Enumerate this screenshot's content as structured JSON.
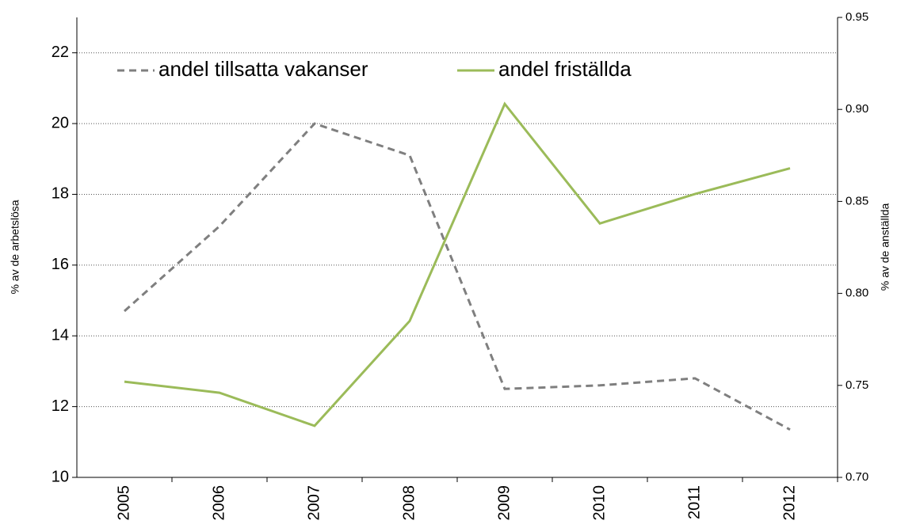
{
  "chart_data": {
    "type": "line",
    "categories": [
      "2005",
      "2006",
      "2007",
      "2008",
      "2009",
      "2010",
      "2011",
      "2012"
    ],
    "series": [
      {
        "name": "andel tillsatta vakanser",
        "color": "#7f7f7f",
        "dashed": true,
        "axis": "y",
        "values": [
          14.7,
          17.1,
          20.0,
          19.1,
          12.5,
          12.6,
          12.8,
          11.35
        ]
      },
      {
        "name": "andel friställda",
        "color": "#9bbb59",
        "dashed": false,
        "axis": "y2",
        "values": [
          0.752,
          0.746,
          0.728,
          0.785,
          0.903,
          0.838,
          0.854,
          0.868
        ]
      }
    ],
    "ylabel": "% av de arbetslösa",
    "y2label": "% av de anställda",
    "ylim": [
      10,
      23
    ],
    "yticks": [
      10,
      12,
      14,
      16,
      18,
      20,
      22
    ],
    "y2lim": [
      0.7,
      0.95
    ],
    "y2ticks": [
      {
        "value": 0.7,
        "label": "0.70"
      },
      0.75,
      {
        "value": 0.8,
        "label": "0.80"
      },
      0.85,
      {
        "value": 0.9,
        "label": "0.90"
      },
      0.95
    ],
    "grid": true,
    "legend": "top"
  }
}
